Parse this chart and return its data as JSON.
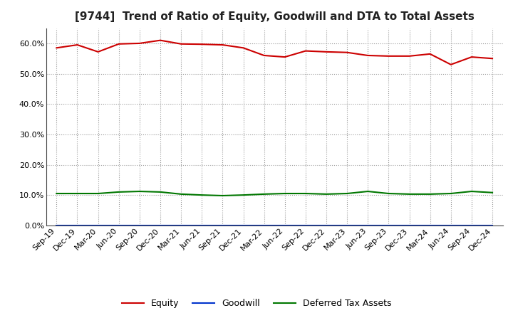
{
  "title": "[9744]  Trend of Ratio of Equity, Goodwill and DTA to Total Assets",
  "x_labels": [
    "Sep-19",
    "Dec-19",
    "Mar-20",
    "Jun-20",
    "Sep-20",
    "Dec-20",
    "Mar-21",
    "Jun-21",
    "Sep-21",
    "Dec-21",
    "Mar-22",
    "Jun-22",
    "Sep-22",
    "Dec-22",
    "Mar-23",
    "Jun-23",
    "Sep-23",
    "Dec-23",
    "Mar-24",
    "Jun-24",
    "Sep-24",
    "Dec-24"
  ],
  "equity": [
    58.5,
    59.5,
    57.2,
    59.8,
    60.0,
    61.0,
    59.8,
    59.7,
    59.5,
    58.5,
    56.0,
    55.5,
    57.5,
    57.2,
    57.0,
    56.0,
    55.8,
    55.8,
    56.5,
    53.0,
    55.5,
    55.0
  ],
  "goodwill": [
    0.0,
    0.0,
    0.0,
    0.0,
    0.0,
    0.0,
    0.0,
    0.0,
    0.0,
    0.0,
    0.0,
    0.0,
    0.0,
    0.0,
    0.0,
    0.0,
    0.0,
    0.0,
    0.0,
    0.0,
    0.0,
    0.0
  ],
  "dta": [
    10.5,
    10.5,
    10.5,
    11.0,
    11.2,
    11.0,
    10.3,
    10.0,
    9.8,
    10.0,
    10.3,
    10.5,
    10.5,
    10.3,
    10.5,
    11.2,
    10.5,
    10.3,
    10.3,
    10.5,
    11.2,
    10.8
  ],
  "equity_color": "#cc0000",
  "goodwill_color": "#0033cc",
  "dta_color": "#007700",
  "bg_color": "#ffffff",
  "plot_bg_color": "#ffffff",
  "grid_color": "#999999",
  "ylim": [
    0,
    65
  ],
  "yticks": [
    0,
    10,
    20,
    30,
    40,
    50,
    60
  ],
  "title_fontsize": 11,
  "legend_labels": [
    "Equity",
    "Goodwill",
    "Deferred Tax Assets"
  ]
}
